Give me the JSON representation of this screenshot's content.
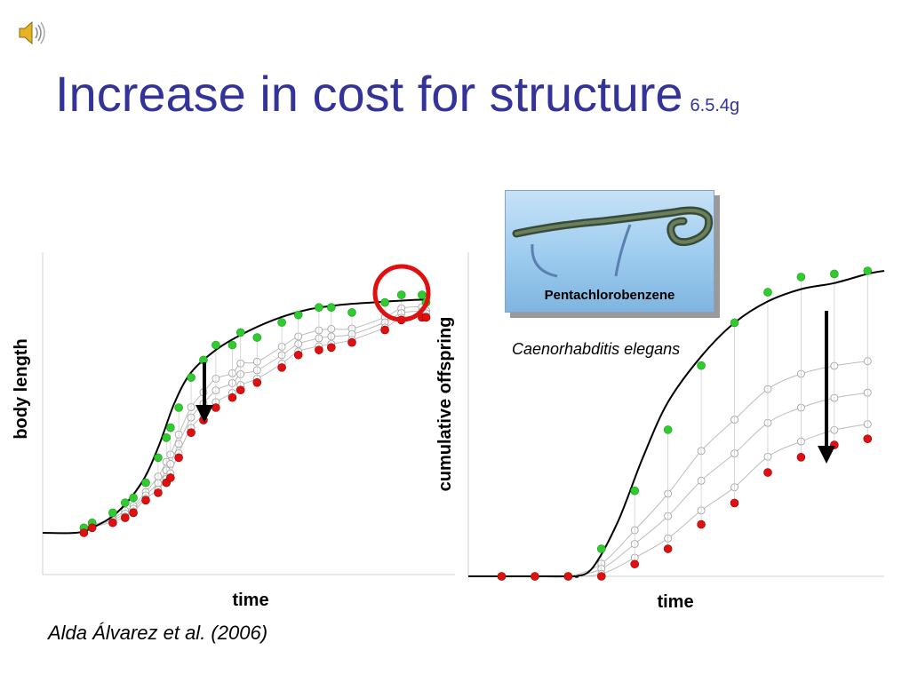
{
  "slide": {
    "title": "Increase in cost for structure",
    "slide_number": "6.5.4g",
    "photo_label": "Pentachlorobenzene",
    "species": "Caenorhabditis elegans",
    "citation": "Alda Álvarez et al. (2006)"
  },
  "icons": {
    "audio": "speaker-icon"
  },
  "colors": {
    "title": "#33339a",
    "control": "#2ecc2e",
    "treated_high": "#e01010",
    "highlight_circle": "#e01010",
    "open_markers": "#ffffff"
  },
  "chart_data": [
    {
      "type": "scatter",
      "title": "",
      "xlabel": "time",
      "ylabel": "body length",
      "xlim": [
        0,
        100
      ],
      "ylim": [
        0,
        100
      ],
      "ticks": "none",
      "grid": false,
      "annotations": [
        "downward arrow at inflection",
        "red circle at final time points"
      ],
      "series": [
        {
          "values": [
            [
              10,
              2
            ],
            [
              12,
              4
            ],
            [
              17,
              8
            ],
            [
              20,
              12
            ],
            [
              22,
              14
            ],
            [
              25,
              20
            ],
            [
              28,
              30
            ],
            [
              30,
              38
            ],
            [
              31,
              42
            ],
            [
              33,
              50
            ],
            [
              36,
              62
            ],
            [
              39,
              69
            ],
            [
              42,
              75
            ],
            [
              46,
              75
            ],
            [
              48,
              80
            ],
            [
              52,
              78
            ],
            [
              58,
              84
            ],
            [
              62,
              87
            ],
            [
              67,
              90
            ],
            [
              70,
              90
            ],
            [
              75,
              88
            ],
            [
              83,
              92
            ],
            [
              87,
              95
            ],
            [
              92,
              95
            ],
            [
              93,
              92
            ]
          ]
        },
        {
          "values": [
            [
              10,
              0
            ],
            [
              12,
              2
            ],
            [
              17,
              4
            ],
            [
              20,
              6
            ],
            [
              22,
              8
            ],
            [
              25,
              13
            ],
            [
              28,
              16
            ],
            [
              30,
              20
            ],
            [
              31,
              22
            ],
            [
              33,
              30
            ],
            [
              36,
              40
            ],
            [
              39,
              45
            ],
            [
              42,
              50
            ],
            [
              46,
              54
            ],
            [
              48,
              57
            ],
            [
              52,
              60
            ],
            [
              58,
              66
            ],
            [
              62,
              71
            ],
            [
              67,
              73
            ],
            [
              70,
              74
            ],
            [
              75,
              76
            ],
            [
              83,
              81
            ],
            [
              87,
              85
            ],
            [
              92,
              86
            ],
            [
              93,
              86
            ]
          ]
        }
      ],
      "fitted_control_curve": [
        [
          0,
          0
        ],
        [
          8,
          0
        ],
        [
          12,
          2
        ],
        [
          18,
          8
        ],
        [
          24,
          20
        ],
        [
          28,
          34
        ],
        [
          32,
          52
        ],
        [
          36,
          64
        ],
        [
          42,
          73
        ],
        [
          48,
          79
        ],
        [
          56,
          85
        ],
        [
          64,
          89
        ],
        [
          72,
          91
        ],
        [
          80,
          92
        ],
        [
          90,
          93
        ],
        [
          93,
          93
        ]
      ]
    },
    {
      "type": "scatter",
      "title": "",
      "xlabel": "time",
      "ylabel": "cumulative offspring",
      "xlim": [
        0,
        100
      ],
      "ylim": [
        0,
        100
      ],
      "ticks": "none",
      "grid": false,
      "annotations": [
        "downward arrow between control and treated"
      ],
      "series": [
        {
          "values": [
            [
              8,
              0
            ],
            [
              16,
              0
            ],
            [
              24,
              0
            ],
            [
              32,
              9
            ],
            [
              40,
              28
            ],
            [
              48,
              48
            ],
            [
              56,
              69
            ],
            [
              64,
              83
            ],
            [
              72,
              93
            ],
            [
              80,
              98
            ],
            [
              88,
              99
            ],
            [
              96,
              100
            ]
          ]
        },
        {
          "values": [
            [
              8,
              0
            ],
            [
              16,
              0
            ],
            [
              24,
              0
            ],
            [
              32,
              0
            ],
            [
              40,
              4
            ],
            [
              48,
              9
            ],
            [
              56,
              17
            ],
            [
              64,
              24
            ],
            [
              72,
              34
            ],
            [
              80,
              39
            ],
            [
              88,
              43
            ],
            [
              96,
              45
            ]
          ]
        }
      ],
      "fitted_control_curve": [
        [
          0,
          0
        ],
        [
          24,
          0
        ],
        [
          26,
          0
        ],
        [
          30,
          3
        ],
        [
          36,
          18
        ],
        [
          42,
          39
        ],
        [
          48,
          57
        ],
        [
          56,
          72
        ],
        [
          64,
          83
        ],
        [
          72,
          90
        ],
        [
          80,
          94
        ],
        [
          88,
          96
        ],
        [
          96,
          99
        ],
        [
          100,
          100
        ]
      ]
    }
  ]
}
